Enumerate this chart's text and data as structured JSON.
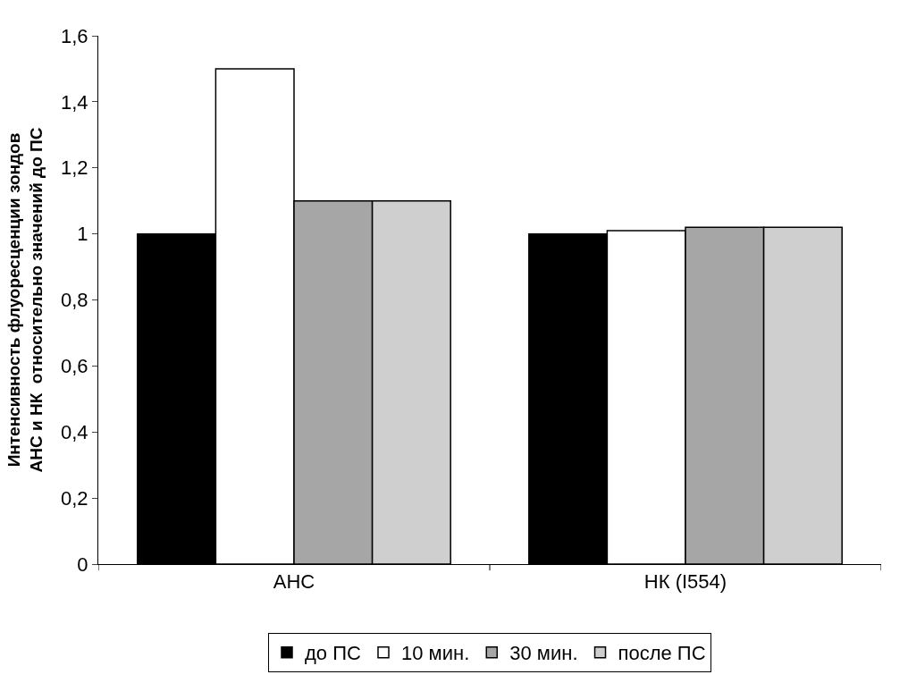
{
  "chart_data": {
    "type": "bar",
    "ylabel": "Интенсивность флуоресценции зондов АНС и НК  относительно значений до ПС",
    "categories": [
      "АНС",
      "НК (I554)"
    ],
    "series": [
      {
        "name": "до ПС",
        "color": "#000000",
        "values": [
          1,
          1
        ]
      },
      {
        "name": "10 мин.",
        "color": "#ffffff",
        "values": [
          1.5,
          1.01
        ]
      },
      {
        "name": "30 мин.",
        "color": "#a6a6a6",
        "values": [
          1.1,
          1.02
        ]
      },
      {
        "name": "после ПС",
        "color": "#cfcfcf",
        "values": [
          1.1,
          1.02
        ]
      }
    ],
    "ylim": [
      0,
      1.6
    ],
    "yticks": [
      0,
      {
        "value": 0.2,
        "label": "0,2"
      },
      {
        "value": 0.4,
        "label": "0,4"
      },
      {
        "value": 0.6,
        "label": "0,6"
      },
      {
        "value": 0.8,
        "label": "0,8"
      },
      1,
      {
        "value": 1.2,
        "label": "1,2"
      },
      {
        "value": 1.4,
        "label": "1,4"
      },
      {
        "value": 1.6,
        "label": "1,6"
      }
    ],
    "legend": "bottom"
  }
}
